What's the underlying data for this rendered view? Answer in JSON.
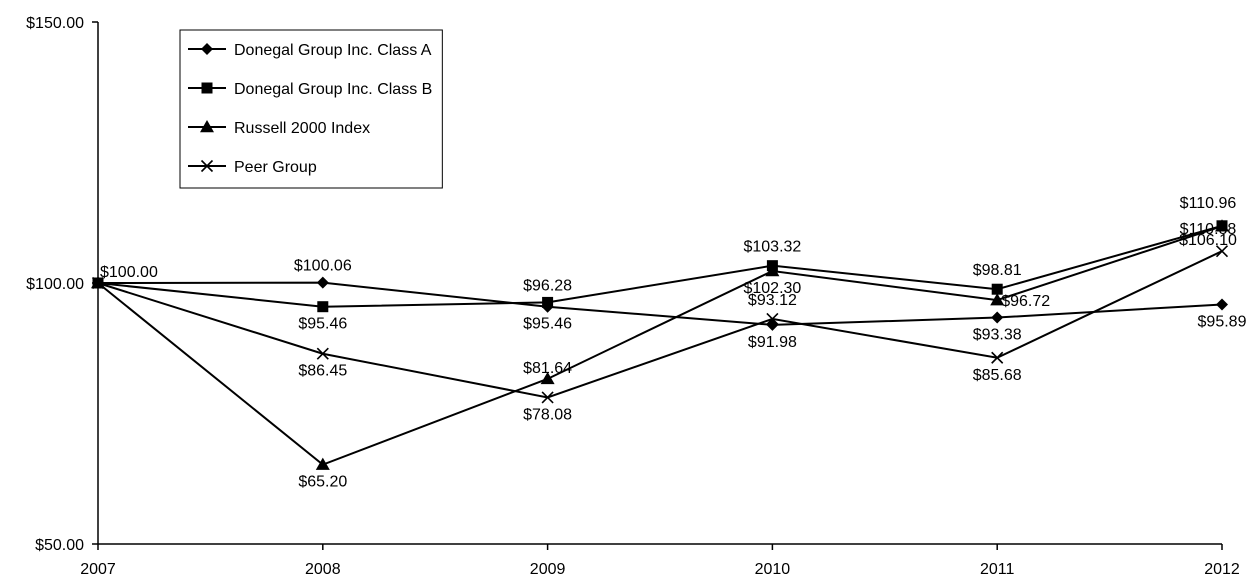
{
  "chart_data": {
    "type": "line",
    "x": [
      "2007",
      "2008",
      "2009",
      "2010",
      "2011",
      "2012"
    ],
    "ylim": [
      50,
      150
    ],
    "y_ticks": [
      "$50.00",
      "$100.00",
      "$150.00"
    ],
    "legend_position": "top-left",
    "grid": false,
    "series": [
      {
        "name": "Donegal Group Inc. Class A",
        "marker": "diamond",
        "values": [
          100.0,
          100.06,
          95.46,
          91.98,
          93.38,
          95.89
        ],
        "labels": [
          "$100.00",
          "$100.06",
          "$95.46",
          "$91.98",
          "$93.38",
          "$95.89"
        ]
      },
      {
        "name": "Donegal Group Inc. Class B",
        "marker": "square",
        "values": [
          100.0,
          95.46,
          96.28,
          103.32,
          98.81,
          110.96
        ],
        "labels": [
          "",
          "$95.46",
          "$96.28",
          "$103.32",
          "$98.81",
          "$110.96"
        ]
      },
      {
        "name": "Russell 2000 Index",
        "marker": "triangle",
        "values": [
          100.0,
          65.2,
          81.64,
          102.3,
          96.72,
          110.88
        ],
        "labels": [
          "",
          "$65.20",
          "$81.64",
          "$102.30",
          "$96.72",
          "$110.88"
        ]
      },
      {
        "name": "Peer Group",
        "marker": "x",
        "values": [
          100.0,
          86.45,
          78.08,
          93.12,
          85.68,
          106.1
        ],
        "labels": [
          "",
          "$86.45",
          "$78.08",
          "$93.12",
          "$85.68",
          "$106.10"
        ]
      }
    ]
  }
}
